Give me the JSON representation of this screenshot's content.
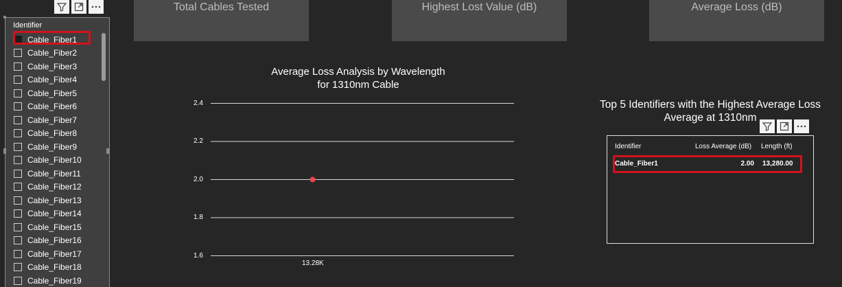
{
  "kpis": [
    {
      "label": "Total Cables Tested"
    },
    {
      "label": "Highest Lost Value (dB)"
    },
    {
      "label": "Average Loss (dB)"
    }
  ],
  "slicer": {
    "header": "Identifier",
    "items": [
      {
        "label": "Cable_Fiber1",
        "checked": true
      },
      {
        "label": "Cable_Fiber2",
        "checked": false
      },
      {
        "label": "Cable_Fiber3",
        "checked": false
      },
      {
        "label": "Cable_Fiber4",
        "checked": false
      },
      {
        "label": "Cable_Fiber5",
        "checked": false
      },
      {
        "label": "Cable_Fiber6",
        "checked": false
      },
      {
        "label": "Cable_Fiber7",
        "checked": false
      },
      {
        "label": "Cable_Fiber8",
        "checked": false
      },
      {
        "label": "Cable_Fiber9",
        "checked": false
      },
      {
        "label": "Cable_Fiber10",
        "checked": false
      },
      {
        "label": "Cable_Fiber11",
        "checked": false
      },
      {
        "label": "Cable_Fiber12",
        "checked": false
      },
      {
        "label": "Cable_Fiber13",
        "checked": false
      },
      {
        "label": "Cable_Fiber14",
        "checked": false
      },
      {
        "label": "Cable_Fiber15",
        "checked": false
      },
      {
        "label": "Cable_Fiber16",
        "checked": false
      },
      {
        "label": "Cable_Fiber17",
        "checked": false
      },
      {
        "label": "Cable_Fiber18",
        "checked": false
      },
      {
        "label": "Cable_Fiber19",
        "checked": false
      }
    ]
  },
  "visual_header_icons": [
    "filter-icon",
    "focus-mode-icon",
    "more-options-icon"
  ],
  "chart": {
    "title_line1": "Average Loss Analysis by Wavelength",
    "title_line2": "for 1310nm Cable"
  },
  "chart_data": {
    "type": "line",
    "title": "Average Loss Analysis by Wavelength for 1310nm Cable",
    "x_tick_labels": [
      "13.28K"
    ],
    "y_ticks": [
      "2.4",
      "2.2",
      "2.0",
      "1.8",
      "1.6"
    ],
    "ylim": [
      1.6,
      2.4
    ],
    "grid": true,
    "series": [
      {
        "points": [
          {
            "x": 13280,
            "y": 2.0
          }
        ],
        "color": "#e8474f"
      }
    ]
  },
  "table": {
    "title_line1": "Top 5 Identifiers with the Highest Average Loss",
    "title_line2": "Average at 1310nm",
    "headers": [
      "Identifier",
      "Loss Average (dB)",
      "Length (ft)"
    ],
    "rows": [
      {
        "identifier": "Cable_Fiber1",
        "loss_average": "2.00",
        "length": "13,280.00"
      }
    ]
  },
  "colors": {
    "background": "#262626",
    "card": "#4a4a4a",
    "highlight": "#d3121c",
    "data_point": "#e8474f"
  }
}
